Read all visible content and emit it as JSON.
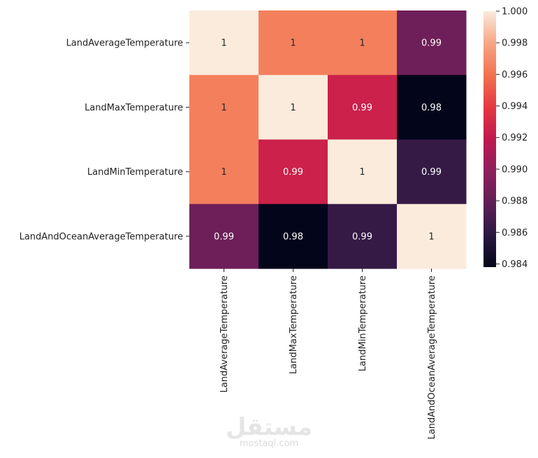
{
  "chart_data": {
    "type": "heatmap",
    "title": "",
    "xlabel": "",
    "ylabel": "",
    "rows": [
      "LandAverageTemperature",
      "LandMaxTemperature",
      "LandMinTemperature",
      "LandAndOceanAverageTemperature"
    ],
    "columns": [
      "LandAverageTemperature",
      "LandMaxTemperature",
      "LandMinTemperature",
      "LandAndOceanAverageTemperature"
    ],
    "values": [
      [
        1.0,
        0.9965,
        0.9965,
        0.9885
      ],
      [
        0.9965,
        1.0,
        0.9925,
        0.9838
      ],
      [
        0.9965,
        0.9925,
        1.0,
        0.9862
      ],
      [
        0.9885,
        0.9838,
        0.9862,
        1.0
      ]
    ],
    "annotations": [
      [
        "1",
        "1",
        "1",
        "0.99"
      ],
      [
        "1",
        "1",
        "0.99",
        "0.98"
      ],
      [
        "1",
        "0.99",
        "1",
        "0.99"
      ],
      [
        "0.99",
        "0.98",
        "0.99",
        "1"
      ]
    ],
    "colormap": "rocket",
    "colorbar": {
      "range": [
        0.9838,
        1.0
      ],
      "ticks": [
        "0.984",
        "0.986",
        "0.988",
        "0.990",
        "0.992",
        "0.994",
        "0.996",
        "0.998",
        "1.000"
      ]
    }
  },
  "watermark": {
    "arabic": "مستقل",
    "latin": "mostaql.com"
  }
}
